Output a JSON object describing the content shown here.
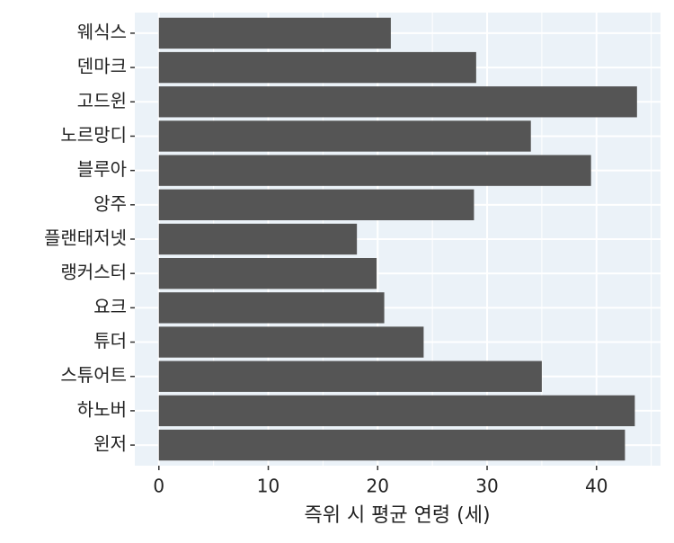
{
  "chart_data": {
    "type": "hbar",
    "categories": [
      "웨식스",
      "덴마크",
      "고드윈",
      "노르망디",
      "블루아",
      "앙주",
      "플랜태저넷",
      "랭커스터",
      "요크",
      "튜더",
      "스튜어트",
      "하노버",
      "윈저"
    ],
    "values": [
      21.2,
      29.0,
      43.7,
      34.0,
      39.5,
      28.8,
      18.1,
      19.9,
      20.6,
      24.2,
      35.0,
      43.5,
      42.6
    ],
    "color": "#555555",
    "x_label": "즉위 시 평균 연령 (세)",
    "xlim": [
      -2.2,
      45.85
    ],
    "xticks": [
      0,
      10,
      20,
      30,
      40
    ],
    "xminorticks": [
      5,
      15,
      25,
      35,
      45
    ],
    "grid": true
  }
}
